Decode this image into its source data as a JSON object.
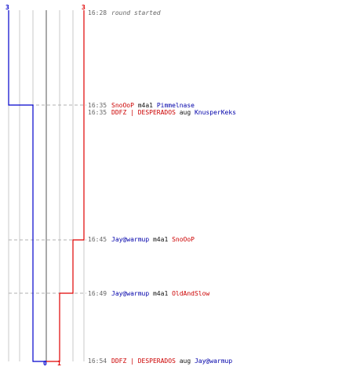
{
  "colors": {
    "red_team": "#e00000",
    "blue_team": "#0000cc",
    "grid": "#c8c8c8",
    "center_line": "#555555",
    "dashed_guide": "#b0b0b0"
  },
  "scores": {
    "blue_start": "3",
    "red_start": "3",
    "blue_end": "0",
    "red_end": "1"
  },
  "events": [
    {
      "time": "16:28",
      "parts": [
        {
          "text": "round started",
          "style": "muted"
        }
      ]
    },
    {
      "time": "16:35",
      "parts": [
        {
          "text": "SnoOoP",
          "style": "red"
        },
        {
          "text": " m4a1 ",
          "style": "dark"
        },
        {
          "text": "Pimmelnase",
          "style": "blue"
        }
      ]
    },
    {
      "time": "16:35",
      "parts": [
        {
          "text": "DDFZ | DESPERADOS",
          "style": "red"
        },
        {
          "text": " aug ",
          "style": "dark"
        },
        {
          "text": "KnusperKeks",
          "style": "blue"
        }
      ]
    },
    {
      "time": "16:45",
      "parts": [
        {
          "text": "Jay@warmup",
          "style": "blue"
        },
        {
          "text": " m4a1 ",
          "style": "dark"
        },
        {
          "text": "SnoOoP",
          "style": "red"
        }
      ]
    },
    {
      "time": "16:49",
      "parts": [
        {
          "text": "Jay@warmup",
          "style": "blue"
        },
        {
          "text": " m4a1 ",
          "style": "dark"
        },
        {
          "text": "OldAndSlow",
          "style": "red"
        }
      ]
    },
    {
      "time": "16:54",
      "parts": [
        {
          "text": "DDFZ | DESPERADOS",
          "style": "red"
        },
        {
          "text": " aug ",
          "style": "dark"
        },
        {
          "text": "Jay@warmup",
          "style": "blue"
        }
      ]
    }
  ]
}
